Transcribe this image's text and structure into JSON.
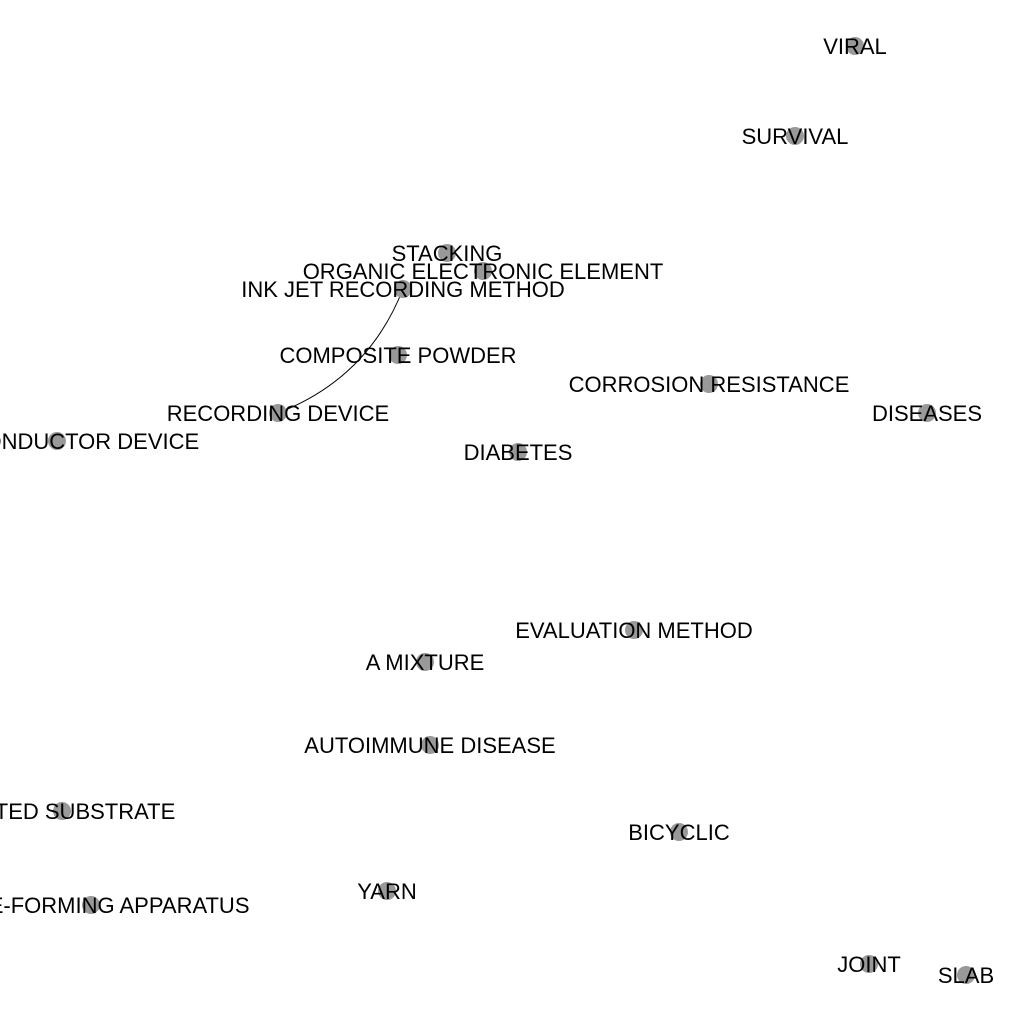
{
  "node_color": "#999999",
  "edge_color": "#000000",
  "label_color": "#000000",
  "nodes": [
    {
      "id": "viral",
      "label": "VIRAL"
    },
    {
      "id": "survival",
      "label": "SURVIVAL"
    },
    {
      "id": "stacking",
      "label": "STACKING"
    },
    {
      "id": "organic-electronic-element",
      "label": "ORGANIC ELECTRONIC ELEMENT"
    },
    {
      "id": "ink-jet-recording-method",
      "label": "INK JET RECORDING METHOD"
    },
    {
      "id": "composite-powder",
      "label": "COMPOSITE POWDER"
    },
    {
      "id": "corrosion-resistance",
      "label": "CORROSION RESISTANCE"
    },
    {
      "id": "recording-device",
      "label": "RECORDING DEVICE"
    },
    {
      "id": "diseases",
      "label": "DISEASES"
    },
    {
      "id": "semiconductor-device",
      "label": "SEMICONDUCTOR DEVICE"
    },
    {
      "id": "diabetes",
      "label": "DIABETES"
    },
    {
      "id": "evaluation-method",
      "label": "EVALUATION METHOD"
    },
    {
      "id": "a-mixture",
      "label": "A MIXTURE"
    },
    {
      "id": "autoimmune-disease",
      "label": "AUTOIMMUNE DISEASE"
    },
    {
      "id": "coated-substrate",
      "label": "COATED SUBSTRATE"
    },
    {
      "id": "bicyclic",
      "label": "BICYCLIC"
    },
    {
      "id": "image-forming-apparatus",
      "label": "IMAGE-FORMING APPARATUS"
    },
    {
      "id": "yarn",
      "label": "YARN"
    },
    {
      "id": "joint",
      "label": "JOINT"
    },
    {
      "id": "slab",
      "label": "SLAB"
    }
  ],
  "edges": [
    {
      "source": "ink-jet-recording-method",
      "target": "recording-device"
    }
  ]
}
